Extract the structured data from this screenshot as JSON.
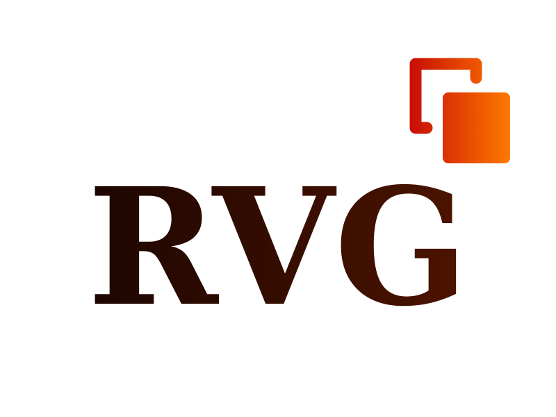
{
  "logo": {
    "wordmark": "RVG",
    "icon_name": "copy-squares-icon",
    "colors": {
      "background": "#ffffff",
      "text_gradient_start": "#1c0600",
      "text_gradient_end": "#4e1400",
      "icon_gradient_start": "#c80c06",
      "icon_gradient_end": "#ff7a00"
    }
  }
}
